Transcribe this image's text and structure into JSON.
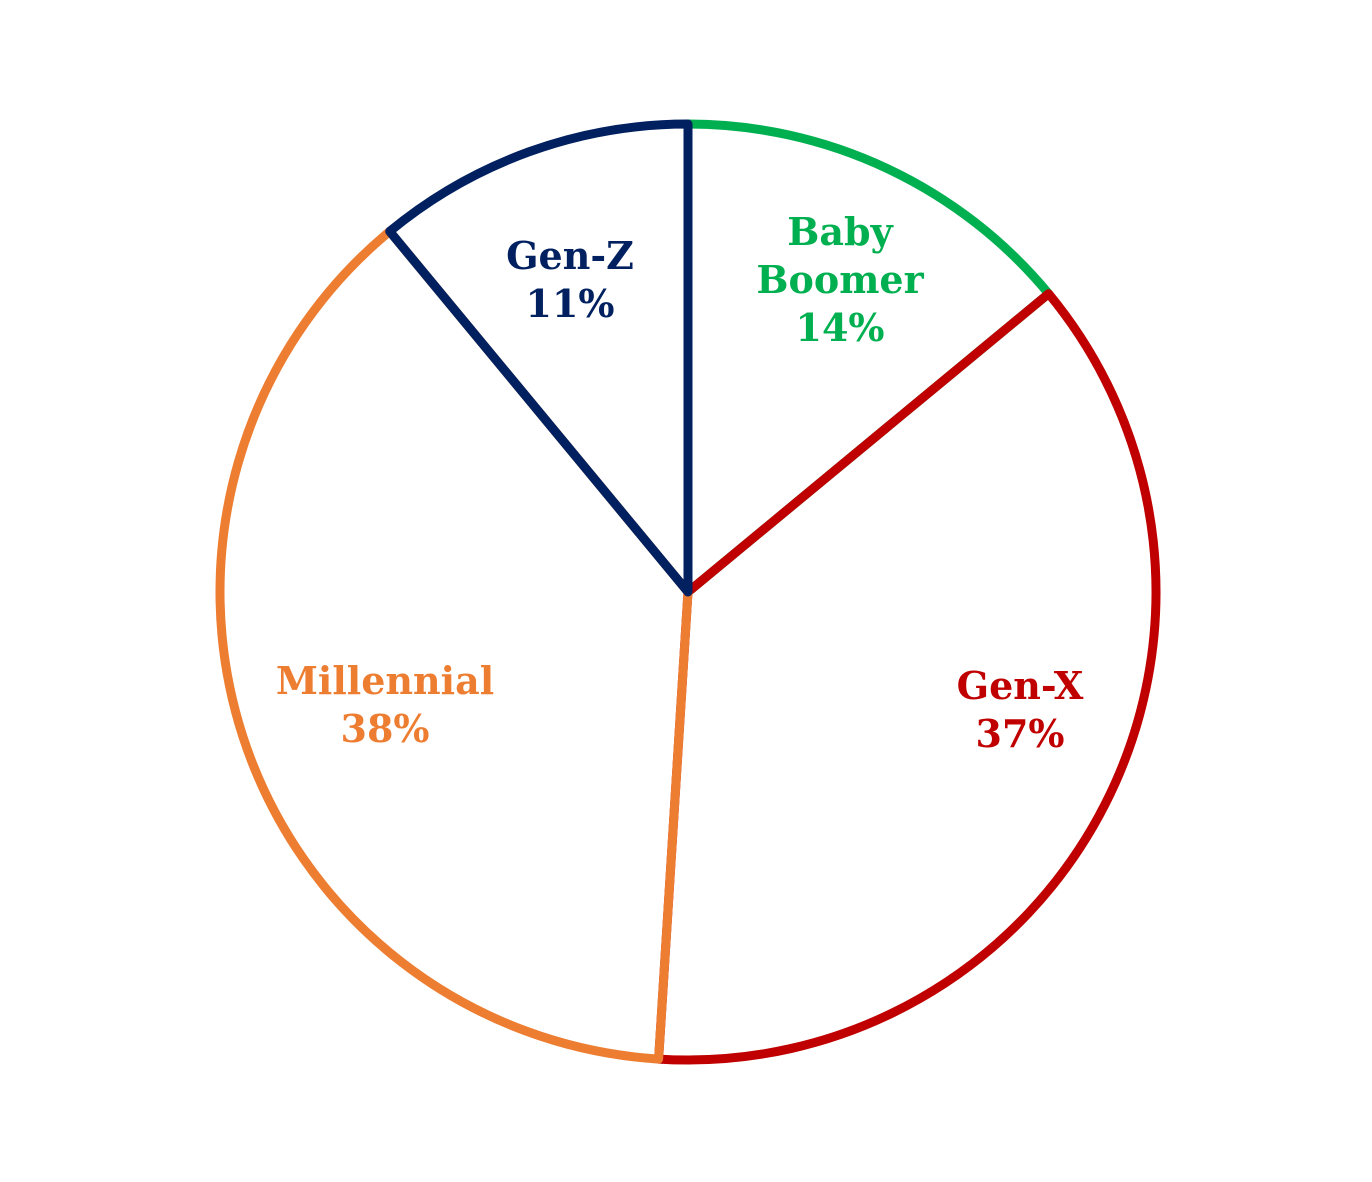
{
  "chart_data": {
    "type": "pie",
    "categories": [
      "Baby Boomer",
      "Gen-X",
      "Millennial",
      "Gen-Z"
    ],
    "values": [
      14,
      37,
      38,
      11
    ],
    "value_labels": [
      "14%",
      "37%",
      "38%",
      "11%"
    ],
    "colors": [
      "#00b050",
      "#c00000",
      "#ed7d31",
      "#002060"
    ]
  }
}
